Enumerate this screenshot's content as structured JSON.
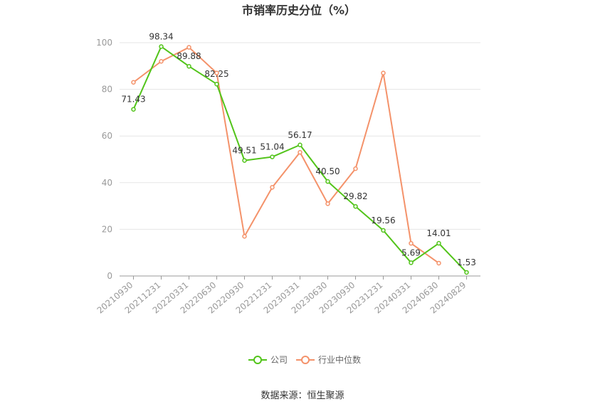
{
  "chart_data": {
    "type": "line",
    "title": "市销率历史分位（%）",
    "categories": [
      "20210930",
      "20211231",
      "20220331",
      "20220630",
      "20220930",
      "20221231",
      "20230331",
      "20230630",
      "20230930",
      "20231231",
      "20240331",
      "20240630",
      "20240829"
    ],
    "ylim": [
      0,
      100
    ],
    "yticks": [
      0,
      20,
      40,
      60,
      80,
      100
    ],
    "grid": true,
    "legend_position": "bottom",
    "series": [
      {
        "name": "公司",
        "color": "#52c41a",
        "values": [
          71.43,
          98.34,
          89.88,
          82.25,
          49.51,
          51.04,
          56.17,
          40.5,
          29.82,
          19.56,
          5.69,
          14.01,
          1.53
        ],
        "labels": [
          "71.43",
          "98.34",
          "89.88",
          "82.25",
          "49.51",
          "51.04",
          "56.17",
          "40.50",
          "29.82",
          "19.56",
          "5.69",
          "14.01",
          "1.53"
        ]
      },
      {
        "name": "行业中位数",
        "color": "#f4926a",
        "values": [
          83,
          92,
          98,
          87,
          17,
          38,
          53,
          31,
          46,
          87,
          14,
          5.5,
          null
        ]
      }
    ]
  },
  "source_text": "数据来源：恒生聚源"
}
